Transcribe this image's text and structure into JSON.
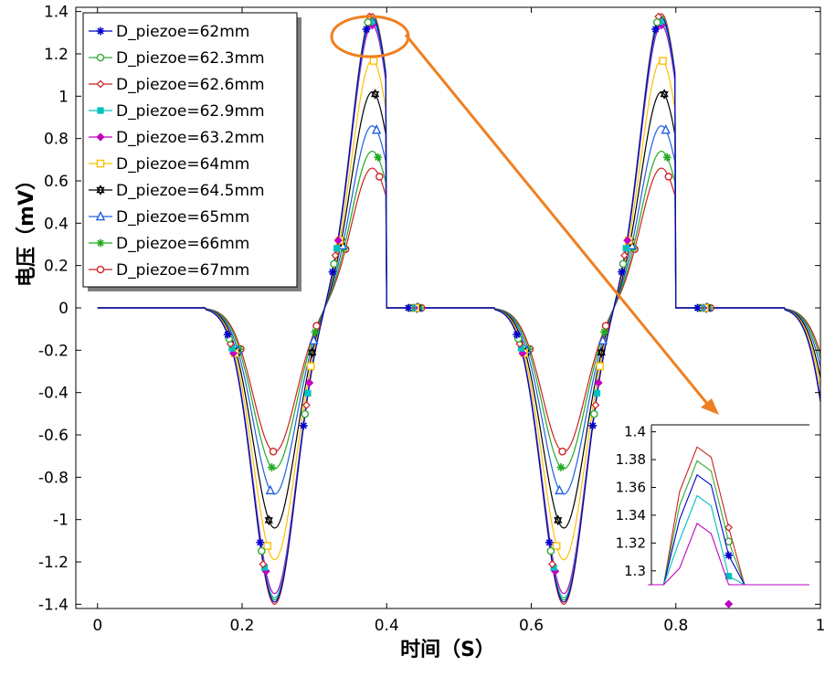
{
  "chart_data": {
    "type": "line",
    "xlabel": "时间（S）",
    "ylabel": "电压（mV）",
    "xlim": [
      -0.03,
      1.0
    ],
    "ylim": [
      -1.42,
      1.42
    ],
    "x_ticks": [
      "0",
      "0.2",
      "0.4",
      "0.6",
      "0.8",
      "1"
    ],
    "x_tick_values": [
      0,
      0.2,
      0.4,
      0.6,
      0.8,
      1.0
    ],
    "y_ticks": [
      "1.4",
      "1.2",
      "1",
      "0.8",
      "0.6",
      "0.4",
      "0.2",
      "0",
      "-0.2",
      "-0.4",
      "-0.6",
      "-0.8",
      "-1",
      "-1.2",
      "-1.4"
    ],
    "y_tick_values": [
      1.4,
      1.2,
      1.0,
      0.8,
      0.6,
      0.4,
      0.2,
      0,
      -0.2,
      -0.4,
      -0.6,
      -0.8,
      -1.0,
      -1.2,
      -1.4
    ],
    "legend_position": "top-left",
    "series": [
      {
        "name": "D_piezoe=62mm",
        "color": "#0000cc",
        "marker": "asterisk",
        "peak": 1.37,
        "trough": -1.39
      },
      {
        "name": "D_piezoe=62.3mm",
        "color": "#33aa33",
        "marker": "circle",
        "peak": 1.38,
        "trough": -1.38
      },
      {
        "name": "D_piezoe=62.6mm",
        "color": "#cc2222",
        "marker": "diamond",
        "peak": 1.39,
        "trough": -1.4
      },
      {
        "name": "D_piezoe=62.9mm",
        "color": "#00c0c0",
        "marker": "square-filled",
        "peak": 1.355,
        "trough": -1.37
      },
      {
        "name": "D_piezoe=63.2mm",
        "color": "#c000c0",
        "marker": "diamond-filled",
        "peak": 1.335,
        "trough": -1.35
      },
      {
        "name": "D_piezoe=64mm",
        "color": "#ffbf00",
        "marker": "square",
        "peak": 1.17,
        "trough": -1.19
      },
      {
        "name": "D_piezoe=64.5mm",
        "color": "#000000",
        "marker": "star",
        "peak": 1.02,
        "trough": -1.04
      },
      {
        "name": "D_piezoe=65mm",
        "color": "#1f5fe0",
        "marker": "triangle",
        "peak": 0.86,
        "trough": -0.88
      },
      {
        "name": "D_piezoe=66mm",
        "color": "#22aa22",
        "marker": "asterisk",
        "peak": 0.74,
        "trough": -0.76
      },
      {
        "name": "D_piezoe=67mm",
        "color": "#cc2222",
        "marker": "circle",
        "peak": 0.66,
        "trough": -0.68
      }
    ],
    "shape": {
      "start": 0.15,
      "trough_x": 0.245,
      "zero_x": 0.315,
      "peak_x": 0.38,
      "end": 0.5,
      "period": 0.4,
      "cycles": 2,
      "x_min": 0,
      "x_max": 1.0
    },
    "inset": {
      "xlim": [
        0.84,
        0.93
      ],
      "ylim": [
        1.29,
        1.405
      ],
      "y_ticks": [
        "1.4",
        "1.38",
        "1.36",
        "1.34",
        "1.32",
        "1.3"
      ],
      "y_tick_values": [
        1.4,
        1.38,
        1.36,
        1.34,
        1.32,
        1.3
      ],
      "series_index": [
        2,
        1,
        0,
        3,
        4
      ]
    }
  }
}
